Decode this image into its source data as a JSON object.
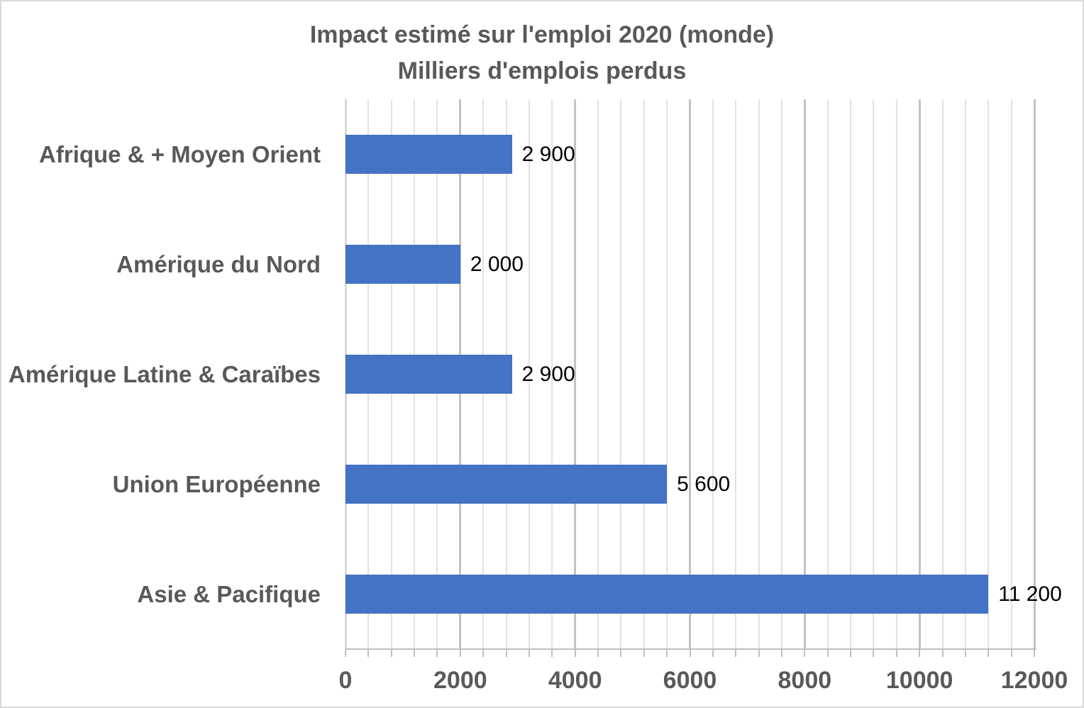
{
  "chart_data": {
    "type": "bar",
    "orientation": "horizontal",
    "title": "Impact estimé sur l'emploi 2020 (monde)",
    "subtitle": "Milliers d'emplois perdus",
    "categories": [
      "Afrique & + Moyen Orient",
      "Amérique du Nord",
      "Amérique Latine & Caraïbes",
      "Union Européenne",
      "Asie & Pacifique"
    ],
    "values": [
      2900,
      2000,
      2900,
      5600,
      11200
    ],
    "value_labels": [
      "2 900",
      "2 000",
      "2 900",
      "5 600",
      "11 200"
    ],
    "xlabel": "",
    "ylabel": "",
    "xlim": [
      0,
      12000
    ],
    "x_major_unit": 2000,
    "x_minor_unit": 400,
    "x_tick_labels": [
      "0",
      "2000",
      "4000",
      "6000",
      "8000",
      "10000",
      "12000"
    ],
    "grid": "vertical gridlines on (minor light + major dark)",
    "legend": "none",
    "colors": {
      "bar": "#4472C4",
      "title_text": "#595959",
      "axis_text": "#595959",
      "data_label_text": "#000000",
      "grid_minor": "#E2E2E2",
      "grid_major": "#C3C3C3",
      "axis_line": "#BFBFBF",
      "chart_border": "#D9D9D9"
    }
  }
}
